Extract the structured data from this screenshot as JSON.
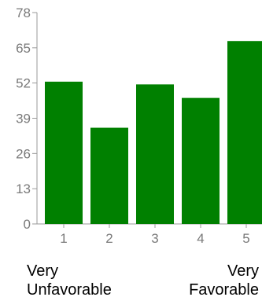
{
  "chart_data": {
    "type": "bar",
    "categories": [
      "1",
      "2",
      "3",
      "4",
      "5"
    ],
    "values": [
      52.5,
      35.5,
      51.5,
      46.5,
      67.5
    ],
    "ylim": [
      0,
      78
    ],
    "yticks": [
      "0",
      "13",
      "26",
      "39",
      "52",
      "65",
      "78"
    ],
    "grid": false,
    "bar_color": "#008000",
    "axis_color": "#9a9a9a"
  },
  "labels": {
    "left_line1": "Very",
    "left_line2": "Unfavorable",
    "right_line1": "Very",
    "right_line2": "Favorable"
  }
}
